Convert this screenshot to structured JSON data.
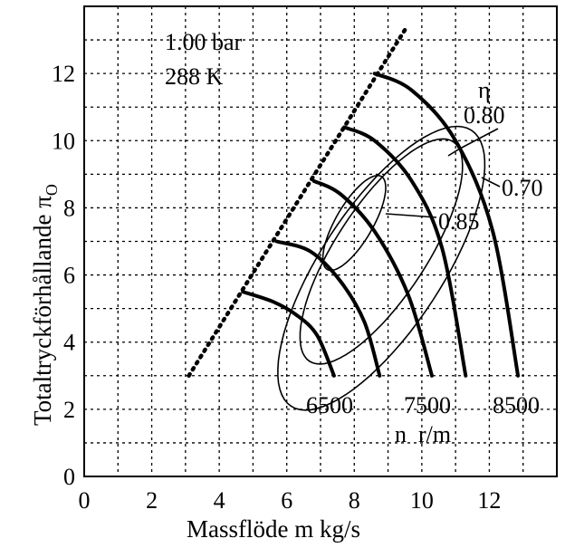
{
  "chart_data": {
    "type": "line",
    "title": "",
    "xlabel": "Massflöde m kg/s",
    "ylabel": "Totaltryckförhållande π",
    "ylabel_subscript": "O",
    "xlim": [
      0,
      14
    ],
    "ylim": [
      0,
      14
    ],
    "x_ticks": [
      0,
      2,
      4,
      6,
      8,
      10,
      12
    ],
    "y_ticks": [
      0,
      2,
      4,
      6,
      8,
      10,
      12
    ],
    "grid": true,
    "conditions": [
      "1.00 bar",
      "288 K"
    ],
    "surge_line": {
      "name": "surge line",
      "points": [
        [
          3.1,
          3.0
        ],
        [
          9.5,
          13.3
        ]
      ]
    },
    "speed_lines": [
      {
        "name": "speed-line-1",
        "points": [
          [
            4.7,
            5.5
          ],
          [
            5.6,
            5.2
          ],
          [
            6.3,
            4.8
          ],
          [
            6.9,
            4.2
          ],
          [
            7.4,
            3.0
          ]
        ]
      },
      {
        "name": "speed-line-2",
        "points": [
          [
            5.7,
            7.0
          ],
          [
            6.7,
            6.7
          ],
          [
            7.6,
            5.8
          ],
          [
            8.3,
            4.6
          ],
          [
            8.75,
            3.0
          ]
        ]
      },
      {
        "name": "speed-line-3",
        "points": [
          [
            6.8,
            8.8
          ],
          [
            7.6,
            8.4
          ],
          [
            8.6,
            7.3
          ],
          [
            9.6,
            5.4
          ],
          [
            10.3,
            3.0
          ]
        ]
      },
      {
        "name": "speed-line-4",
        "points": [
          [
            7.7,
            10.4
          ],
          [
            8.6,
            10.0
          ],
          [
            9.7,
            8.8
          ],
          [
            10.6,
            6.8
          ],
          [
            11.3,
            3.0
          ]
        ]
      },
      {
        "name": "speed-line-5",
        "points": [
          [
            8.6,
            12.0
          ],
          [
            9.7,
            11.5
          ],
          [
            11.0,
            10.0
          ],
          [
            12.1,
            7.3
          ],
          [
            12.85,
            3.0
          ]
        ]
      }
    ],
    "efficiency_contours": [
      {
        "label": "0.70",
        "cx": 8.8,
        "cy": 6.2,
        "rx": 4.9,
        "ry": 1.8,
        "angle": 57
      },
      {
        "label": "0.80",
        "cx": 8.8,
        "cy": 6.7,
        "rx": 3.9,
        "ry": 1.35,
        "angle": 57
      },
      {
        "label": "0.85",
        "cx": 8.0,
        "cy": 7.55,
        "rx": 1.6,
        "ry": 0.55,
        "angle": 60
      }
    ],
    "speed_labels": [
      "6500",
      "7500",
      "8500"
    ],
    "speed_unit_label": "n  r/m",
    "eta_label": "η"
  }
}
